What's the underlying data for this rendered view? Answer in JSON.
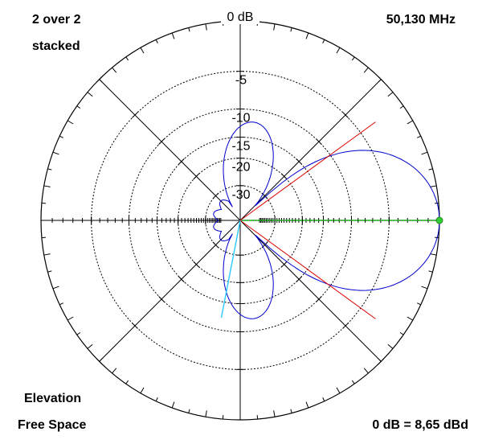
{
  "header": {
    "title_line1": "2 over 2",
    "title_line2": "stacked",
    "frequency": "50,130 MHz"
  },
  "footer": {
    "view": "Elevation",
    "environment": "Free Space",
    "reference": "0 dB = 8,65 dBd"
  },
  "colors": {
    "pattern": "#0000cc",
    "beam_edge": "#dd0000",
    "max_line": "#00cc00",
    "max_marker": "#33cc33",
    "rear_lobe": "#33ccff",
    "grid": "#000000"
  },
  "chart_data": {
    "type": "polar",
    "scale": "logarithmic dB",
    "radial_ticks": [
      {
        "db": 0,
        "label": "0 dB"
      },
      {
        "db": -5,
        "label": "-5"
      },
      {
        "db": -10,
        "label": "-10"
      },
      {
        "db": -15,
        "label": "-15"
      },
      {
        "db": -20,
        "label": "-20"
      },
      {
        "db": -30,
        "label": "-30"
      }
    ],
    "main_lobe_direction_deg": 0,
    "main_lobe_gain_db": 0,
    "half_power_beam_edges_deg": [
      -36,
      36
    ],
    "rear_lobe_direction_deg": 259,
    "pattern": [
      {
        "angle_deg": 0,
        "db": 0
      },
      {
        "angle_deg": 10,
        "db": -0.6
      },
      {
        "angle_deg": 20,
        "db": -1.5
      },
      {
        "angle_deg": 36,
        "db": -3
      },
      {
        "angle_deg": 45,
        "db": -30
      },
      {
        "angle_deg": 75,
        "db": -14
      },
      {
        "angle_deg": 90,
        "db": -12
      },
      {
        "angle_deg": 105,
        "db": -17
      },
      {
        "angle_deg": 180,
        "db": -40
      }
    ]
  }
}
